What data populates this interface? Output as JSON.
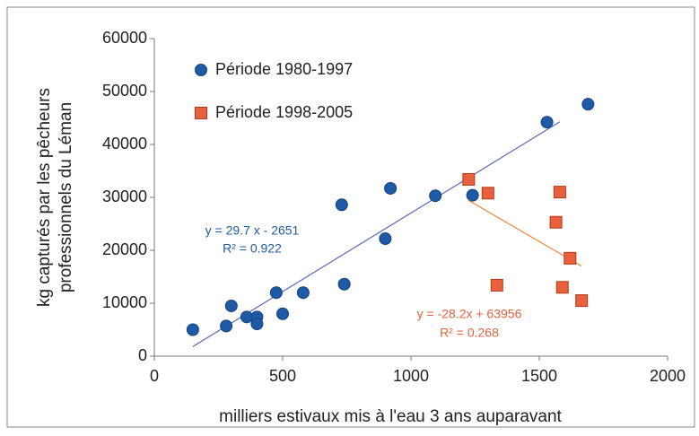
{
  "chart_data": {
    "type": "scatter",
    "xlabel": "milliers estivaux mis à l'eau 3 ans auparavant",
    "ylabel": [
      "kg capturés par les pêcheurs",
      "professionnels du Léman"
    ],
    "xlim": [
      0,
      2000
    ],
    "xticks": [
      0,
      500,
      1000,
      1500,
      2000
    ],
    "ylim": [
      0,
      60000
    ],
    "yticks": [
      0,
      10000,
      20000,
      30000,
      40000,
      50000,
      60000
    ],
    "grid": false,
    "legend": "upper left",
    "series": [
      {
        "name": "Période 1980-1997",
        "color": "#1f5aa6",
        "marker": "circle",
        "x": [
          150,
          280,
          300,
          360,
          400,
          400,
          475,
          500,
          580,
          730,
          740,
          900,
          920,
          1095,
          1240,
          1530,
          1690
        ],
        "values": [
          5000,
          5700,
          9500,
          7400,
          7400,
          6100,
          12000,
          8000,
          12000,
          28600,
          13600,
          22200,
          31700,
          30300,
          30400,
          44200,
          47600
        ],
        "trendline": {
          "slope": 29.7,
          "intercept": -2651,
          "xrange": [
            150,
            1580
          ],
          "color": "#5a66b8",
          "equation": "y = 29.7 x - 2651",
          "r2": "R² = 0.922"
        }
      },
      {
        "name": "Période 1998-2005",
        "color": "#e8603c",
        "marker": "square",
        "x": [
          1225,
          1300,
          1335,
          1565,
          1580,
          1590,
          1620,
          1665
        ],
        "values": [
          33400,
          30800,
          13400,
          25300,
          31000,
          13000,
          18500,
          10500
        ],
        "trendline": {
          "slope": -28.2,
          "intercept": 63956,
          "xrange": [
            1224,
            1664
          ],
          "color": "#ec8a40",
          "equation": "y = -28.2x + 63956",
          "r2": "R² = 0.268"
        }
      }
    ]
  }
}
